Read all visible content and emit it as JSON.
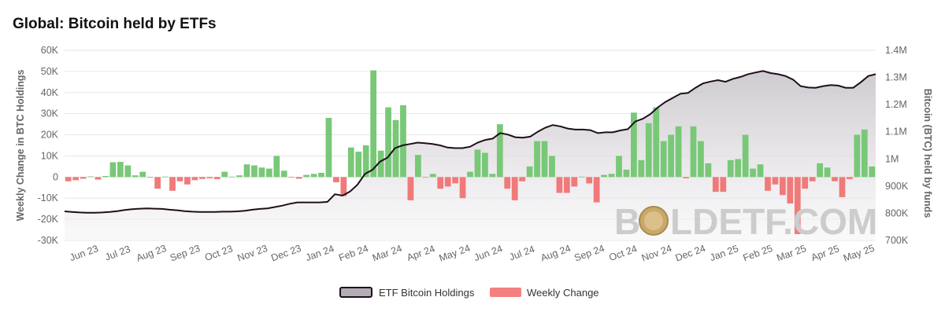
{
  "chart_data": {
    "type": "bar+area",
    "title": "Global: Bitcoin held by ETFs",
    "ylabel_left": "Weekly Change in BTC Holdings",
    "ylabel_right": "Bitcoin (BTC) held by funds",
    "ylim_left": [
      -30000,
      60000
    ],
    "ylim_right": [
      700000,
      1400000
    ],
    "yticks_left": [
      "-30K",
      "-20K",
      "-10K",
      "0",
      "10K",
      "20K",
      "30K",
      "40K",
      "50K",
      "60K"
    ],
    "yticks_right": [
      "700K",
      "800K",
      "900K",
      "1M",
      "1.1M",
      "1.2M",
      "1.3M",
      "1.4M"
    ],
    "xticks": [
      "Jun 23",
      "Jul 23",
      "Aug 23",
      "Sep 23",
      "Oct 23",
      "Nov 23",
      "Dec 23",
      "Jan 24",
      "Feb 24",
      "Mar 24",
      "Apr 24",
      "May 24",
      "Jun 24",
      "Jul 24",
      "Aug 24",
      "Sep 24",
      "Oct 24",
      "Nov 24",
      "Dec 24",
      "Jan 25",
      "Feb 25",
      "Mar 25",
      "Apr 25",
      "May 25"
    ],
    "legend": {
      "holdings_label": "ETF Bitcoin Holdings",
      "change_label": "Weekly Change"
    },
    "colors": {
      "positive": "#78c878",
      "negative": "#f07a7a",
      "line": "#1e0f1a",
      "legend_area": "#b3aeb5",
      "legend_neg": "#f58080",
      "grid": "#e6e6e6"
    },
    "weekly_change": [
      -2000,
      -1500,
      -800,
      300,
      -1200,
      500,
      7000,
      7200,
      5500,
      800,
      2500,
      -200,
      -5500,
      200,
      -6500,
      -2000,
      -3500,
      -1500,
      -900,
      -600,
      -1000,
      2500,
      200,
      800,
      6000,
      5500,
      4500,
      4000,
      10000,
      3000,
      -200,
      -800,
      1000,
      1500,
      2000,
      28000,
      -2500,
      -9000,
      14000,
      12000,
      15000,
      50500,
      12500,
      33000,
      27000,
      34000,
      -11000,
      10500,
      -300,
      1500,
      -5500,
      -4500,
      -3000,
      -10000,
      2500,
      13000,
      11500,
      1500,
      25000,
      -5500,
      -11000,
      -2000,
      5000,
      17000,
      17000,
      10000,
      -7500,
      -7500,
      -4500,
      200,
      -3000,
      -12000,
      1000,
      1500,
      10000,
      3500,
      30500,
      8000,
      25500,
      33000,
      17000,
      20000,
      24000,
      -600,
      24000,
      17000,
      6500,
      -7000,
      -7000,
      8000,
      8500,
      20000,
      4000,
      6000,
      -6500,
      -3500,
      -8500,
      -12500,
      -27000,
      -5500,
      -2000,
      6500,
      4500,
      -2000,
      -9500,
      -1000,
      20000,
      22500,
      5000
    ],
    "holdings": [
      807000,
      805000,
      803000,
      802000,
      802000,
      803000,
      805000,
      808000,
      812000,
      815000,
      817000,
      818000,
      817000,
      816000,
      813000,
      811000,
      808000,
      806000,
      805000,
      805000,
      805000,
      806000,
      806000,
      807000,
      809000,
      813000,
      816000,
      818000,
      823000,
      828000,
      835000,
      840000,
      840000,
      840000,
      840000,
      842000,
      870000,
      865000,
      880000,
      905000,
      945000,
      960000,
      990000,
      1005000,
      1040000,
      1050000,
      1055000,
      1060000,
      1058000,
      1055000,
      1050000,
      1042000,
      1040000,
      1040000,
      1045000,
      1060000,
      1070000,
      1075000,
      1095000,
      1090000,
      1080000,
      1078000,
      1082000,
      1100000,
      1115000,
      1125000,
      1120000,
      1112000,
      1108000,
      1108000,
      1106000,
      1095000,
      1098000,
      1098000,
      1105000,
      1110000,
      1138000,
      1148000,
      1165000,
      1190000,
      1210000,
      1225000,
      1240000,
      1243000,
      1262000,
      1278000,
      1285000,
      1290000,
      1284000,
      1295000,
      1302000,
      1312000,
      1318000,
      1324000,
      1316000,
      1312000,
      1305000,
      1292000,
      1268000,
      1263000,
      1262000,
      1268000,
      1272000,
      1270000,
      1262000,
      1262000,
      1282000,
      1305000,
      1312000
    ]
  },
  "watermark": {
    "left": "B",
    "right": "LDETF.COM"
  }
}
